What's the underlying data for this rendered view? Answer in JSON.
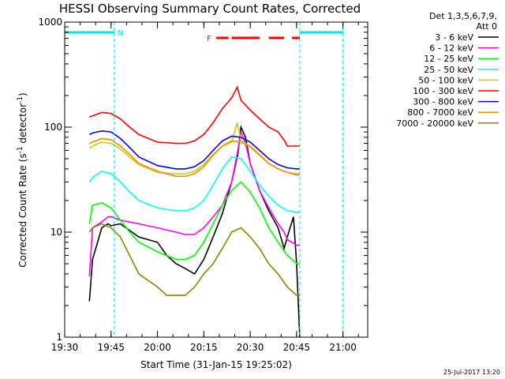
{
  "chart_data": {
    "type": "line",
    "title": "HESSI Observing Summary Count Rates, Corrected",
    "xlabel": "Start Time (31-Jan-15 19:25:02)",
    "ylabel": "Corrected Count Rate (s",
    "ylabel_sup1": "-1",
    "ylabel_mid": " detector",
    "ylabel_sup2": "-1",
    "ylabel_end": ")",
    "yscale": "log",
    "ylim": [
      1,
      1000
    ],
    "xlim_minutes": [
      19.5,
      21.1333
    ],
    "x_ticks": [
      "19:30",
      "19:45",
      "20:00",
      "20:15",
      "20:30",
      "20:45",
      "21:00"
    ],
    "x_tick_values": [
      19.5,
      19.75,
      20.0,
      20.25,
      20.5,
      20.75,
      21.0
    ],
    "y_ticks": [
      "1",
      "10",
      "100",
      "1000"
    ],
    "y_tick_values": [
      1,
      10,
      100,
      1000
    ],
    "legend_header": [
      "Det 1,3,5,6,7,9,",
      "Att 0"
    ],
    "series": [
      {
        "name": "3 - 6 keV",
        "color": "#000000",
        "x": [
          19.633,
          19.65,
          19.7,
          19.733,
          19.75,
          19.8,
          19.9,
          20.0,
          20.05,
          20.1,
          20.15,
          20.2,
          20.25,
          20.3,
          20.35,
          20.4,
          20.433,
          20.45,
          20.475,
          20.5,
          20.55,
          20.6,
          20.65,
          20.683,
          20.7,
          20.733,
          20.75,
          20.767
        ],
        "y": [
          2.2,
          5.5,
          11,
          12,
          11.5,
          12,
          9,
          8,
          6,
          5,
          4.5,
          4,
          5.5,
          9,
          15,
          30,
          55,
          100,
          80,
          45,
          25,
          16,
          11,
          7,
          9,
          14,
          5,
          0.8
        ]
      },
      {
        "name": "6 - 12 keV",
        "color": "#ff00ff",
        "x": [
          19.633,
          19.65,
          19.7,
          19.733,
          19.75,
          19.8,
          19.9,
          20.0,
          20.1,
          20.15,
          20.2,
          20.25,
          20.3,
          20.35,
          20.4,
          20.433,
          20.45,
          20.475,
          20.5,
          20.55,
          20.6,
          20.65,
          20.683,
          20.7,
          20.75,
          20.767
        ],
        "y": [
          3.8,
          11,
          12.5,
          14,
          14,
          13,
          12,
          11,
          10,
          9.5,
          9.5,
          11,
          14,
          18,
          30,
          60,
          90,
          70,
          45,
          25,
          17,
          12,
          10,
          8.5,
          7.5,
          7.5
        ]
      },
      {
        "name": "12 - 25 keV",
        "color": "#00ff00",
        "x": [
          19.633,
          19.65,
          19.7,
          19.75,
          19.8,
          19.85,
          19.9,
          20.0,
          20.1,
          20.15,
          20.2,
          20.25,
          20.3,
          20.35,
          20.4,
          20.45,
          20.5,
          20.55,
          20.6,
          20.65,
          20.7,
          20.75,
          20.767
        ],
        "y": [
          12,
          18,
          19,
          17,
          13,
          10,
          8,
          6.5,
          5.5,
          5.5,
          6,
          8,
          12,
          18,
          25,
          30,
          24,
          17,
          11,
          8,
          6,
          5,
          5
        ]
      },
      {
        "name": "25 - 50 keV",
        "color": "#00ffff",
        "x": [
          19.633,
          19.65,
          19.7,
          19.75,
          19.8,
          19.85,
          19.9,
          20.0,
          20.1,
          20.15,
          20.2,
          20.25,
          20.3,
          20.35,
          20.4,
          20.45,
          20.5,
          20.55,
          20.6,
          20.65,
          20.7,
          20.75,
          20.767
        ],
        "y": [
          30,
          33,
          38,
          36,
          30,
          24,
          20,
          17,
          16,
          16,
          17,
          20,
          28,
          40,
          52,
          50,
          38,
          28,
          22,
          18,
          16,
          15.5,
          15.5
        ]
      },
      {
        "name": "50 - 100 keV",
        "color": "#cccc00",
        "x": [
          19.633,
          19.65,
          19.7,
          19.75,
          19.8,
          19.85,
          19.9,
          20.0,
          20.1,
          20.15,
          20.2,
          20.25,
          20.3,
          20.35,
          20.4,
          20.43,
          20.45,
          20.5,
          20.55,
          20.6,
          20.65,
          20.7,
          20.75,
          20.767
        ],
        "y": [
          63,
          66,
          72,
          70,
          62,
          52,
          44,
          37,
          36,
          36,
          38,
          44,
          55,
          66,
          72,
          110,
          75,
          66,
          55,
          45,
          40,
          37,
          36,
          36
        ]
      },
      {
        "name": "100 - 300 keV",
        "color": "#ff0000",
        "x": [
          19.633,
          19.65,
          19.7,
          19.75,
          19.8,
          19.85,
          19.9,
          20.0,
          20.1,
          20.15,
          20.2,
          20.25,
          20.3,
          20.35,
          20.4,
          20.43,
          20.45,
          20.5,
          20.55,
          20.6,
          20.65,
          20.683,
          20.7,
          20.75,
          20.767
        ],
        "y": [
          125,
          128,
          138,
          135,
          120,
          100,
          85,
          72,
          70,
          70,
          74,
          85,
          110,
          150,
          190,
          240,
          180,
          145,
          120,
          100,
          90,
          75,
          66,
          66,
          66
        ]
      },
      {
        "name": "300 - 800 keV",
        "color": "#0000ff",
        "x": [
          19.633,
          19.65,
          19.7,
          19.75,
          19.8,
          19.85,
          19.9,
          20.0,
          20.1,
          20.15,
          20.2,
          20.25,
          20.3,
          20.35,
          20.4,
          20.45,
          20.5,
          20.55,
          20.6,
          20.65,
          20.7,
          20.75,
          20.767
        ],
        "y": [
          85,
          88,
          92,
          90,
          78,
          64,
          52,
          43,
          40,
          40,
          42,
          48,
          60,
          74,
          82,
          80,
          72,
          60,
          50,
          44,
          41,
          40,
          40
        ]
      },
      {
        "name": "800 - 7000 keV",
        "color": "#ff8800",
        "x": [
          19.633,
          19.65,
          19.7,
          19.75,
          19.8,
          19.85,
          19.9,
          20.0,
          20.1,
          20.15,
          20.2,
          20.25,
          20.3,
          20.35,
          20.4,
          20.45,
          20.5,
          20.55,
          20.6,
          20.65,
          20.7,
          20.75,
          20.767
        ],
        "y": [
          70,
          72,
          78,
          76,
          66,
          55,
          45,
          38,
          34,
          34,
          36,
          42,
          54,
          66,
          74,
          72,
          65,
          54,
          45,
          40,
          37,
          35,
          35
        ]
      },
      {
        "name": "7000 - 20000 keV",
        "color": "#888800",
        "x": [
          19.633,
          19.65,
          19.7,
          19.75,
          19.8,
          19.85,
          19.9,
          20.0,
          20.05,
          20.1,
          20.15,
          20.2,
          20.25,
          20.3,
          20.35,
          20.4,
          20.45,
          20.5,
          20.55,
          20.6,
          20.65,
          20.7,
          20.75,
          20.767
        ],
        "y": [
          10,
          11,
          12,
          11,
          9,
          6,
          4,
          3,
          2.5,
          2.5,
          2.5,
          3,
          4,
          5,
          7,
          10,
          11,
          9,
          7,
          5,
          4,
          3,
          2.5,
          2.5
        ]
      }
    ],
    "annotations": {
      "night_label": "N",
      "flare_label": "F",
      "cyan_vlines_x": [
        19.767,
        20.767,
        21.0
      ],
      "night_bars": [
        [
          19.5,
          19.767
        ],
        [
          20.767,
          21.0
        ]
      ],
      "flare_bars": [
        [
          20.317,
          20.383
        ],
        [
          20.4,
          20.55
        ],
        [
          20.6,
          20.683
        ],
        [
          20.725,
          20.767
        ]
      ]
    },
    "grid": false,
    "legend_position": "right"
  },
  "timestamp": "25-Jul-2017 13:20"
}
